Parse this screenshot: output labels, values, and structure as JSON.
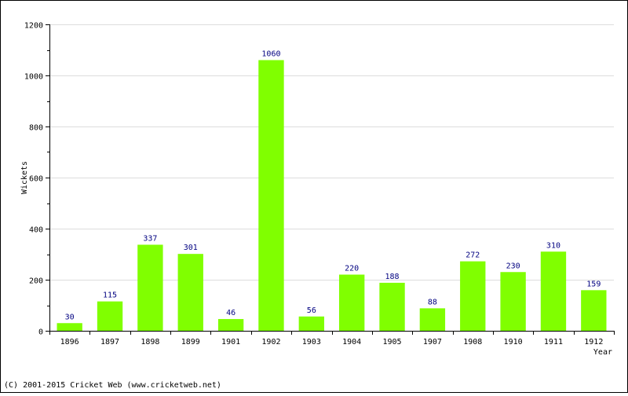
{
  "chart_data": {
    "type": "bar",
    "title": "",
    "xlabel": "Year",
    "ylabel": "Wickets",
    "categories": [
      "1896",
      "1897",
      "1898",
      "1899",
      "1901",
      "1902",
      "1903",
      "1904",
      "1905",
      "1907",
      "1908",
      "1910",
      "1911",
      "1912"
    ],
    "values": [
      30,
      115,
      337,
      301,
      46,
      1060,
      56,
      220,
      188,
      88,
      272,
      230,
      310,
      159
    ],
    "ylim": [
      0,
      1200
    ],
    "yticks": [
      0,
      200,
      400,
      600,
      800,
      1000,
      1200
    ],
    "grid": true,
    "bar_color": "#80ff00",
    "label_color": "#000080"
  },
  "footer": {
    "copyright": "(C) 2001-2015 Cricket Web (www.cricketweb.net)"
  }
}
